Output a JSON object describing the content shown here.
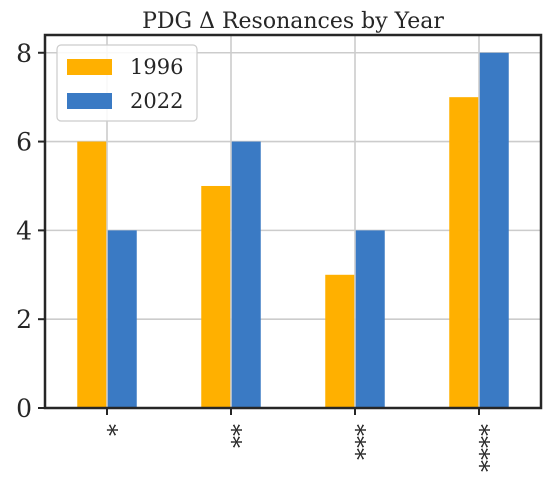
{
  "chart_data": {
    "type": "bar",
    "title": "PDG Δ Resonances by Year",
    "xlabel": "",
    "ylabel": "",
    "categories": [
      "*",
      "**",
      "***",
      "****"
    ],
    "series": [
      {
        "name": "1996",
        "values": [
          6,
          5,
          3,
          7
        ],
        "color": "#FFB000"
      },
      {
        "name": "2022",
        "values": [
          4,
          6,
          4,
          8
        ],
        "color": "#3A7AC4"
      }
    ],
    "ylim": [
      0,
      8.4
    ],
    "yticks": [
      0,
      2,
      4,
      6,
      8
    ],
    "grid": true,
    "legend_position": "top-left",
    "category_label_orientation": "rotated-vertical"
  }
}
